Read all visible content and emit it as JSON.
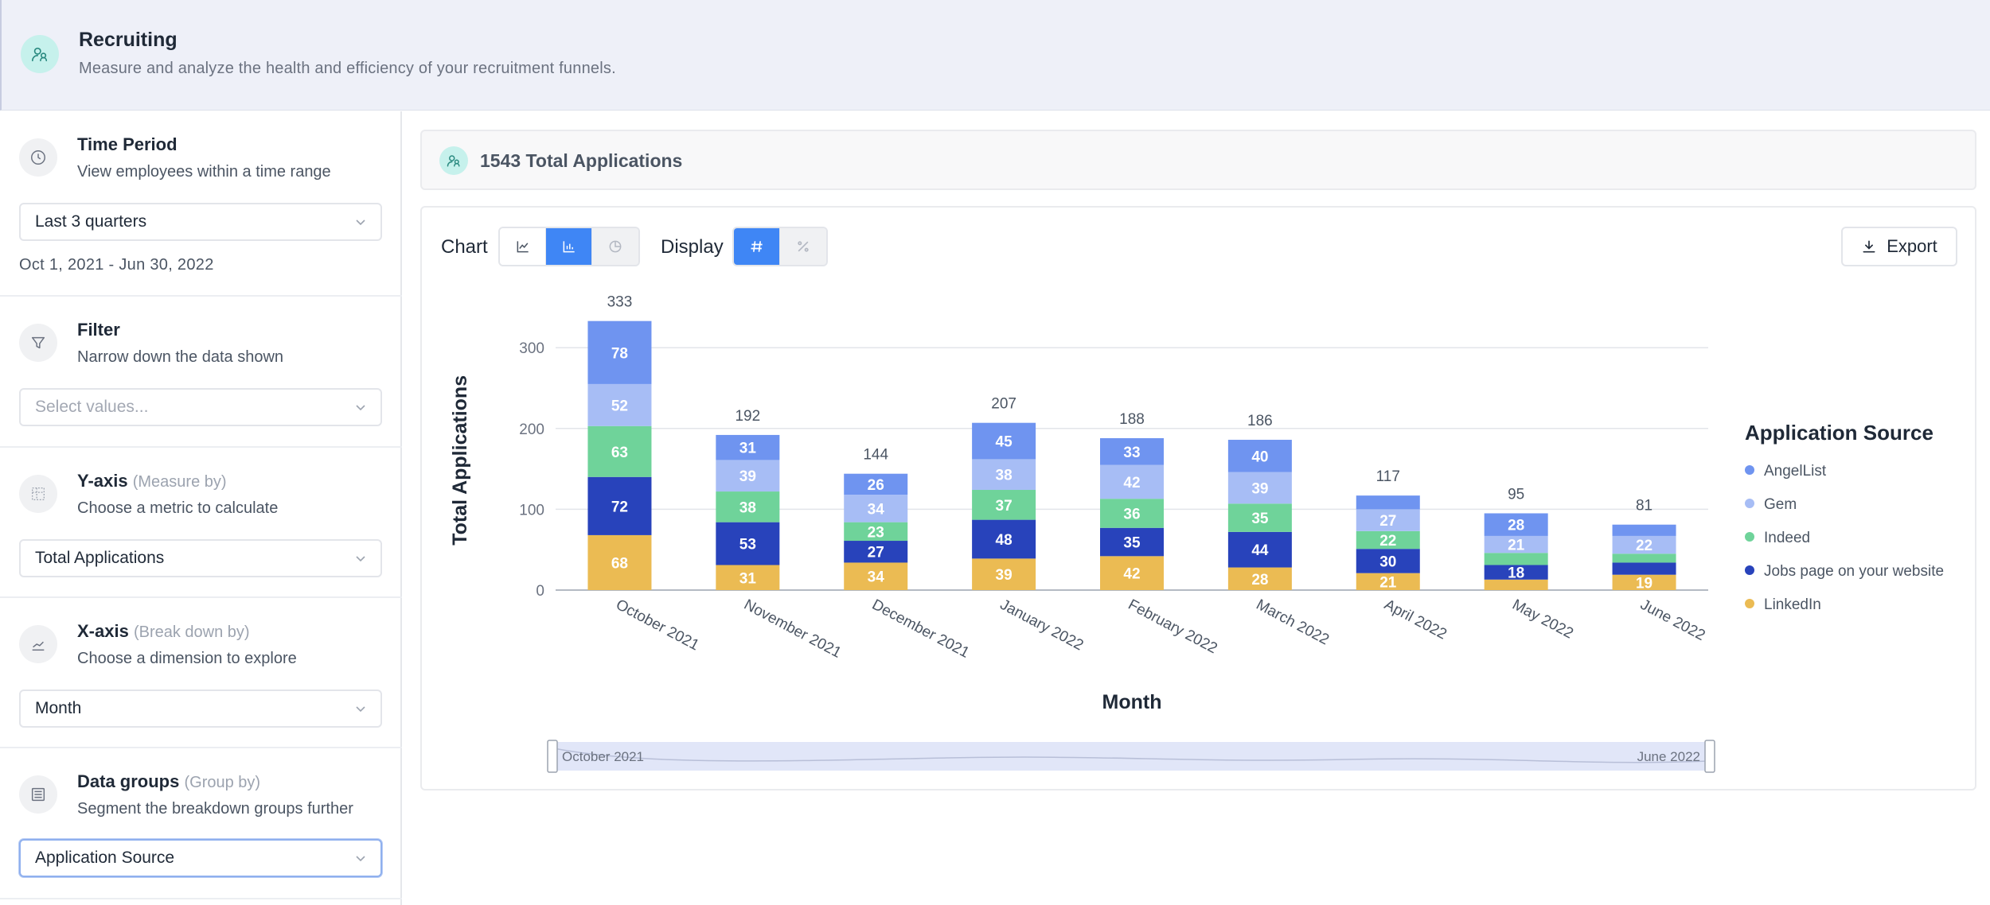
{
  "header": {
    "title": "Recruiting",
    "subtitle": "Measure and analyze the health and efficiency of your recruitment funnels.",
    "icon": "people-icon"
  },
  "sidebar": {
    "time_period": {
      "title": "Time Period",
      "description": "View employees within a time range",
      "select_value": "Last 3 quarters",
      "date_range": "Oct 1, 2021 - Jun 30, 2022",
      "icon": "clock-icon"
    },
    "filter": {
      "title": "Filter",
      "description": "Narrow down the data shown",
      "placeholder": "Select values...",
      "icon": "funnel-icon"
    },
    "y_axis": {
      "title": "Y-axis",
      "hint": "(Measure by)",
      "description": "Choose a metric to calculate",
      "select_value": "Total Applications",
      "icon": "grid-icon"
    },
    "x_axis": {
      "title": "X-axis",
      "hint": "(Break down by)",
      "description": "Choose a dimension to explore",
      "select_value": "Month",
      "icon": "line-chart-icon"
    },
    "data_groups": {
      "title": "Data groups",
      "hint": "(Group by)",
      "description": "Segment the breakdown groups further",
      "select_value": "Application Source",
      "icon": "group-icon"
    }
  },
  "summary": {
    "total_text": "1543 Total Applications"
  },
  "toolbar": {
    "chart_label": "Chart",
    "display_label": "Display",
    "export_label": "Export",
    "chart_types": [
      "line-chart-icon",
      "bar-chart-icon",
      "pie-chart-icon"
    ],
    "chart_type_active": "bar-chart-icon",
    "display_modes": [
      "hash-icon",
      "percent-icon"
    ],
    "display_active": "hash-icon"
  },
  "colors": {
    "accent": "#3f86f5",
    "AngelList": "#6f94f0",
    "Gem": "#a7bdf5",
    "Indeed": "#6fd39a",
    "Jobs page on your website": "#2843bb",
    "LinkedIn": "#ebbb53"
  },
  "chart_data": {
    "type": "bar",
    "stacked": true,
    "categories": [
      "October 2021",
      "November 2021",
      "December 2021",
      "January 2022",
      "February 2022",
      "March 2022",
      "April 2022",
      "May 2022",
      "June 2022"
    ],
    "series": [
      {
        "name": "LinkedIn",
        "values": [
          68,
          31,
          34,
          39,
          42,
          28,
          21,
          13,
          19
        ]
      },
      {
        "name": "Jobs page on your website",
        "values": [
          72,
          53,
          27,
          48,
          35,
          44,
          30,
          18,
          15
        ]
      },
      {
        "name": "Indeed",
        "values": [
          63,
          38,
          23,
          37,
          36,
          35,
          22,
          15,
          11
        ]
      },
      {
        "name": "Gem",
        "values": [
          52,
          39,
          34,
          38,
          42,
          39,
          27,
          21,
          22
        ]
      },
      {
        "name": "AngelList",
        "values": [
          78,
          31,
          26,
          45,
          33,
          40,
          17,
          28,
          14
        ]
      }
    ],
    "totals": [
      333,
      192,
      144,
      207,
      188,
      186,
      117,
      95,
      81
    ],
    "xlabel": "Month",
    "ylabel": "Total Applications",
    "ylim": [
      0,
      333
    ],
    "yticks": [
      0,
      100,
      200,
      300
    ],
    "grid": true,
    "legend": {
      "title": "Application Source",
      "placement": "right",
      "entries": [
        "AngelList",
        "Gem",
        "Indeed",
        "Jobs page on your website",
        "LinkedIn"
      ]
    },
    "range_slider": {
      "start_label": "October 2021",
      "end_label": "June 2022"
    }
  }
}
